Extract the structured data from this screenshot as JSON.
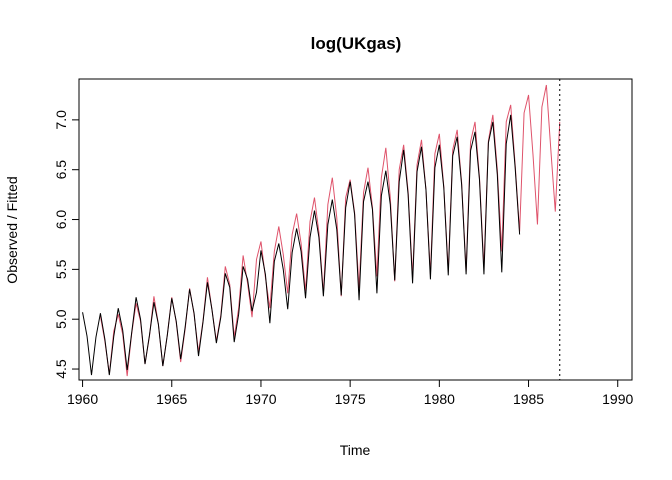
{
  "chart_data": {
    "type": "line",
    "title": "log(UKgas)",
    "xlabel": "Time",
    "ylabel": "Observed / Fitted",
    "xlim": [
      1959.8,
      1990.8
    ],
    "ylim": [
      4.39,
      7.41
    ],
    "x_ticks": [
      1960,
      1965,
      1970,
      1975,
      1980,
      1985,
      1990
    ],
    "x_tick_labels": [
      "1960",
      "1965",
      "1970",
      "1975",
      "1980",
      "1985",
      "1990"
    ],
    "y_ticks": [
      4.5,
      5.0,
      5.5,
      6.0,
      6.5,
      7.0
    ],
    "y_tick_labels": [
      "4.5",
      "5.0",
      "5.5",
      "6.0",
      "6.5",
      "7.0"
    ],
    "forecast_origin": 1986.75,
    "grid": false,
    "series": [
      {
        "color": "#000000",
        "start": 1960.0,
        "frequency": 4,
        "values": [
          5.07,
          4.83,
          4.44,
          4.82,
          5.06,
          4.8,
          4.44,
          4.83,
          5.11,
          4.89,
          4.49,
          4.86,
          5.22,
          5.0,
          4.55,
          4.84,
          5.17,
          4.95,
          4.53,
          4.84,
          5.21,
          4.98,
          4.6,
          4.92,
          5.3,
          5.06,
          4.63,
          4.97,
          5.37,
          5.1,
          4.76,
          5.02,
          5.46,
          5.32,
          4.77,
          5.05,
          5.53,
          5.4,
          5.08,
          5.27,
          5.69,
          5.45,
          4.96,
          5.58,
          5.76,
          5.5,
          5.1,
          5.67,
          5.91,
          5.68,
          5.21,
          5.82,
          6.09,
          5.82,
          5.23,
          5.95,
          6.2,
          5.9,
          5.24,
          6.12,
          6.38,
          6.05,
          5.19,
          6.18,
          6.38,
          6.1,
          5.26,
          6.24,
          6.49,
          6.15,
          5.39,
          6.38,
          6.7,
          6.25,
          5.36,
          6.48,
          6.73,
          6.3,
          5.4,
          6.52,
          6.75,
          6.32,
          5.44,
          6.64,
          6.83,
          6.35,
          5.45,
          6.69,
          6.88,
          6.4,
          5.45,
          6.77,
          6.98,
          6.45,
          5.47,
          6.76,
          7.05,
          6.52,
          5.85
        ]
      },
      {
        "color": "#DF536B",
        "start": 1961.0,
        "frequency": 4,
        "values": [
          5.03,
          4.78,
          4.45,
          4.88,
          5.05,
          4.85,
          4.43,
          4.85,
          5.16,
          4.98,
          4.55,
          4.83,
          5.23,
          4.95,
          4.53,
          4.84,
          5.22,
          4.97,
          4.57,
          4.9,
          5.31,
          5.05,
          4.67,
          4.98,
          5.42,
          5.1,
          4.78,
          5.04,
          5.53,
          5.35,
          4.82,
          5.11,
          5.64,
          5.36,
          5.02,
          5.6,
          5.78,
          5.42,
          5.11,
          5.68,
          5.93,
          5.65,
          5.26,
          5.85,
          6.06,
          5.76,
          5.28,
          5.98,
          6.22,
          5.87,
          5.26,
          6.15,
          6.42,
          6.02,
          5.23,
          6.22,
          6.4,
          6.07,
          5.31,
          6.27,
          6.52,
          6.12,
          5.43,
          6.42,
          6.72,
          6.22,
          5.38,
          6.5,
          6.75,
          6.28,
          5.42,
          6.55,
          6.8,
          6.3,
          5.45,
          6.66,
          6.86,
          6.33,
          5.48,
          6.7,
          6.9,
          6.37,
          5.48,
          6.78,
          6.98,
          6.42,
          5.52,
          6.79,
          7.05,
          6.5,
          5.68,
          6.98,
          7.15,
          6.55,
          5.88,
          7.07,
          7.25,
          6.65,
          5.95,
          7.13,
          7.35,
          6.7,
          6.08,
          6.98
        ]
      }
    ]
  }
}
